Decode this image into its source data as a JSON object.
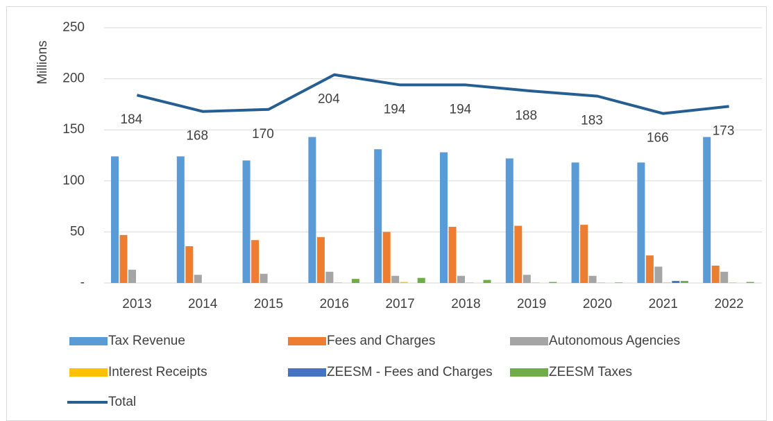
{
  "chart_data": {
    "type": "bar",
    "y_label": "Millions",
    "categories": [
      "2013",
      "2014",
      "2015",
      "2016",
      "2017",
      "2018",
      "2019",
      "2020",
      "2021",
      "2022"
    ],
    "series": [
      {
        "name": "Tax Revenue",
        "color": "#5b9bd5",
        "values": [
          124,
          124,
          120,
          143,
          131,
          128,
          122,
          118,
          118,
          143
        ]
      },
      {
        "name": "Fees and Charges",
        "color": "#ed7d31",
        "values": [
          47,
          36,
          42,
          45,
          50,
          55,
          56,
          57,
          27,
          17
        ]
      },
      {
        "name": "Autonomous Agencies",
        "color": "#a5a5a5",
        "values": [
          13,
          8,
          9,
          11,
          7,
          7,
          8,
          7,
          16,
          11
        ]
      },
      {
        "name": "Interest Receipts",
        "color": "#ffc000",
        "values": [
          0,
          0,
          0,
          0.5,
          1,
          0.5,
          0.5,
          0.5,
          0.5,
          0.5
        ]
      },
      {
        "name": "ZEESM - Fees and Charges",
        "color": "#4472c4",
        "values": [
          0,
          0,
          0,
          0,
          0,
          0,
          0,
          0,
          2,
          0
        ]
      },
      {
        "name": "ZEESM Taxes",
        "color": "#70ad47",
        "values": [
          0,
          0,
          0,
          4,
          5,
          3,
          1,
          0.5,
          2,
          1
        ]
      },
      {
        "name": "Total",
        "color": "#255e91",
        "type": "line",
        "values": [
          184,
          168,
          170,
          204,
          194,
          194,
          188,
          183,
          166,
          173
        ]
      }
    ],
    "ylim": [
      0,
      250
    ],
    "yticks": [
      {
        "value": 0,
        "label": "-"
      },
      50,
      100,
      150,
      200,
      250
    ],
    "grid": true
  }
}
